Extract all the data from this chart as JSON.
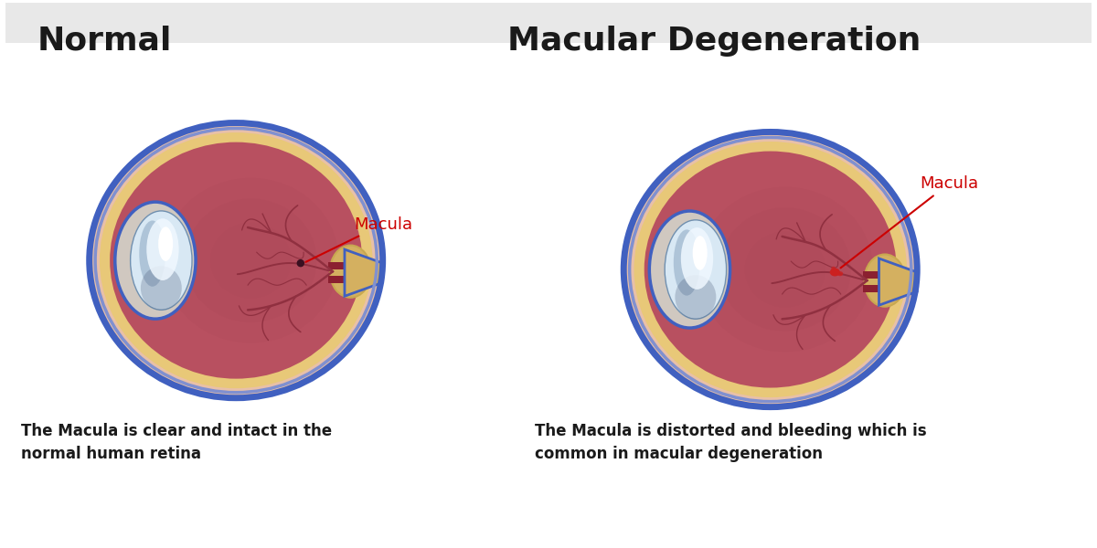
{
  "bg_color": "#f0f0f0",
  "bg_main": "#ffffff",
  "title_left": "Normal",
  "title_right": "Macular Degeneration",
  "title_fontsize": 26,
  "title_color": "#1a1a1a",
  "caption_left": "The Macula is clear and intact in the\nnormal human retina",
  "caption_right": "The Macula is distorted and bleeding which is\ncommon in macular degeneration",
  "caption_fontsize": 12,
  "caption_color": "#1a1a1a",
  "label_color": "#cc0000",
  "label_text": "Macula",
  "label_fontsize": 13,
  "sclera_outer_color": "#e8c0a8",
  "sclera_inner_color": "#c07060",
  "retina_color": "#b85060",
  "retina_dark_color": "#a04050",
  "choroid_color": "#e8c878",
  "blue_ring_color": "#4060c0",
  "blue_ring_inner": "#8090d0",
  "cornea_outer_color": "#c0c8d8",
  "cornea_inner_color": "#d8e8f4",
  "cornea_highlight": "#f0f8ff",
  "cornea_blue_tint": "#7090b0",
  "cornea_dark": "#405070",
  "vessel_color": "#903040",
  "optic_area_color": "#d4b060",
  "optic_notch_color": "#c8a850",
  "macula_dot_color": "#3a1020",
  "bleed_color": "#cc2020",
  "nerve_stripe_color": "#8b2030"
}
